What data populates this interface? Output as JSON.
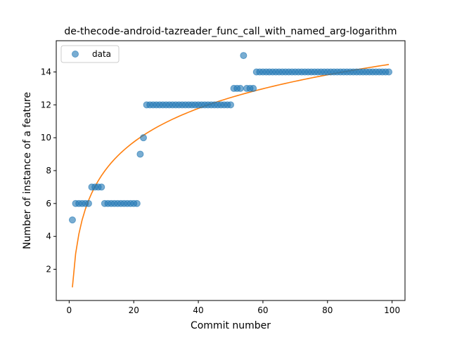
{
  "chart_data": {
    "type": "scatter",
    "title": "de-thecode-android-tazreader_func_call_with_named_arg-logarithm",
    "xlabel": "Commit number",
    "ylabel": "Number of instance of a feature",
    "xlim": [
      -4,
      104
    ],
    "ylim": [
      0.1,
      15.9
    ],
    "xticks": [
      0,
      20,
      40,
      60,
      80,
      100
    ],
    "yticks": [
      2,
      4,
      6,
      8,
      10,
      12,
      14
    ],
    "grid": false,
    "legend_position": "top-left",
    "series": [
      {
        "name": "data",
        "kind": "scatter",
        "color": "#1f77b4",
        "x": [
          1,
          2,
          3,
          4,
          5,
          6,
          7,
          8,
          9,
          10,
          11,
          12,
          13,
          14,
          15,
          16,
          17,
          18,
          19,
          20,
          21,
          22,
          23,
          24,
          25,
          26,
          27,
          28,
          29,
          30,
          31,
          32,
          33,
          34,
          35,
          36,
          37,
          38,
          39,
          40,
          41,
          42,
          43,
          44,
          45,
          46,
          47,
          48,
          49,
          50,
          51,
          52,
          53,
          54,
          55,
          56,
          57,
          58,
          59,
          60,
          61,
          62,
          63,
          64,
          65,
          66,
          67,
          68,
          69,
          70,
          71,
          72,
          73,
          74,
          75,
          76,
          77,
          78,
          79,
          80,
          81,
          82,
          83,
          84,
          85,
          86,
          87,
          88,
          89,
          90,
          91,
          92,
          93,
          94,
          95,
          96,
          97,
          98,
          99
        ],
        "y": [
          5,
          6,
          6,
          6,
          6,
          6,
          7,
          7,
          7,
          7,
          6,
          6,
          6,
          6,
          6,
          6,
          6,
          6,
          6,
          6,
          6,
          9,
          10,
          12,
          12,
          12,
          12,
          12,
          12,
          12,
          12,
          12,
          12,
          12,
          12,
          12,
          12,
          12,
          12,
          12,
          12,
          12,
          12,
          12,
          12,
          12,
          12,
          12,
          12,
          12,
          13,
          13,
          13,
          15,
          13,
          13,
          13,
          14,
          14,
          14,
          14,
          14,
          14,
          14,
          14,
          14,
          14,
          14,
          14,
          14,
          14,
          14,
          14,
          14,
          14,
          14,
          14,
          14,
          14,
          14,
          14,
          14,
          14,
          14,
          14,
          14,
          14,
          14,
          14,
          14,
          14,
          14,
          14,
          14,
          14,
          14,
          14,
          14,
          14
        ]
      },
      {
        "name": "",
        "kind": "line",
        "color": "#ff7f0e",
        "fit": {
          "model": "logarithmic",
          "a": 0.9,
          "b": 2.95
        }
      }
    ]
  }
}
